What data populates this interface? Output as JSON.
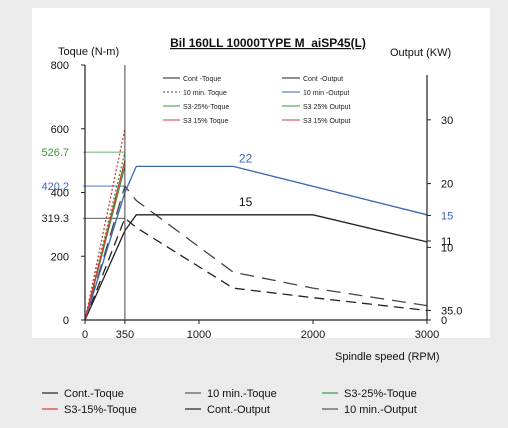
{
  "chart_data": {
    "type": "line",
    "title": "Bil 160LL 10000TYPE M_aiSP45(L)",
    "xlabel": "Spindle speed (RPM)",
    "ylabel_left": "Toque (N-m)",
    "ylabel_right": "Output (KW)",
    "xlim": [
      0,
      3000
    ],
    "ylim_left": [
      0,
      800
    ],
    "x_ticks": [
      0,
      350,
      1000,
      2000,
      3000
    ],
    "y_left_ticks": [
      0,
      200,
      400,
      600,
      800
    ],
    "y_left_special_ticks": [
      {
        "label": "526.7",
        "value": 526.7,
        "color": "#3a9a3a"
      },
      {
        "label": "420.2",
        "value": 420.2,
        "color": "#3a66b4"
      },
      {
        "label": "319.3",
        "value": 319.3,
        "color": "#222222"
      }
    ],
    "y_right_ticks": [
      {
        "label": "30",
        "left_value": 628
      },
      {
        "label": "20",
        "left_value": 428
      },
      {
        "label": "15",
        "left_value": 328,
        "color": "#3a66b4"
      },
      {
        "label": "11",
        "left_value": 248
      },
      {
        "label": "10",
        "left_value": 228
      },
      {
        "label": "35.0",
        "left_value": 30
      },
      {
        "label": "0",
        "left_value": 0
      }
    ],
    "annotations": [
      {
        "text": "22",
        "x": 1350,
        "y": 482,
        "color": "#3a66b4"
      },
      {
        "text": "15",
        "x": 1350,
        "y": 345,
        "color": "#111111"
      }
    ],
    "series": [
      {
        "name": "Cont.-Toque",
        "color": "#222222",
        "dash": "10 6",
        "x": [
          0,
          350,
          450,
          1300,
          2000,
          3000
        ],
        "y": [
          0,
          319.3,
          290,
          100,
          70,
          30
        ]
      },
      {
        "name": "10 min.-Toque",
        "color": "#444444",
        "dash": "14 8",
        "x": [
          0,
          350,
          450,
          1300,
          2000,
          3000
        ],
        "y": [
          0,
          420.2,
          375,
          150,
          100,
          45
        ]
      },
      {
        "name": "S3-25%-Toque",
        "color": "#3a9a3a",
        "dash": "2 2",
        "x": [
          0,
          350
        ],
        "y": [
          0,
          526.7
        ]
      },
      {
        "name": "S3-15%-Toque",
        "color": "#d23b3b",
        "dash": "2 2",
        "x": [
          0,
          350
        ],
        "y": [
          0,
          600
        ]
      },
      {
        "name": "Cont.-Output",
        "color": "#222222",
        "dash": "",
        "x": [
          0,
          350,
          450,
          2000,
          3000
        ],
        "y": [
          0,
          280,
          330,
          330,
          245
        ]
      },
      {
        "name": "10 min.-Output",
        "color": "#3a66b4",
        "dash": "",
        "x": [
          0,
          350,
          450,
          1300,
          3000
        ],
        "y": [
          0,
          400,
          482,
          482,
          330
        ]
      },
      {
        "name": "S3-25%-Output",
        "color": "#3a9a3a",
        "dash": "",
        "x": [
          0,
          350
        ],
        "y": [
          0,
          482
        ]
      },
      {
        "name": "S3-15%-Output",
        "color": "#d23b3b",
        "dash": "",
        "x": [
          0,
          350
        ],
        "y": [
          0,
          500
        ]
      }
    ],
    "guides": [
      {
        "x1": 350,
        "y1": 0,
        "x2": 350,
        "y2": 800,
        "color": "#444444"
      }
    ],
    "inner_legend_left": [
      "Cont -Toque",
      "10 min. Toque",
      "S3-25%-Toque",
      "S3 15% Toque"
    ],
    "inner_legend_right": [
      "Cont -Output",
      "10 min -Output",
      "S3 25% Output",
      "S3 15% Output"
    ],
    "bottom_legend": [
      {
        "label": "Cont.-Toque",
        "color": "#222222"
      },
      {
        "label": "10 min.-Toque",
        "color": "#555555"
      },
      {
        "label": "S3-25%-Toque",
        "color": "#3a9a3a"
      },
      {
        "label": "S3-15%-Toque",
        "color": "#d23b3b"
      },
      {
        "label": "Cont.-Output",
        "color": "#222222"
      },
      {
        "label": "10 min.-Output",
        "color": "#555555"
      }
    ]
  }
}
